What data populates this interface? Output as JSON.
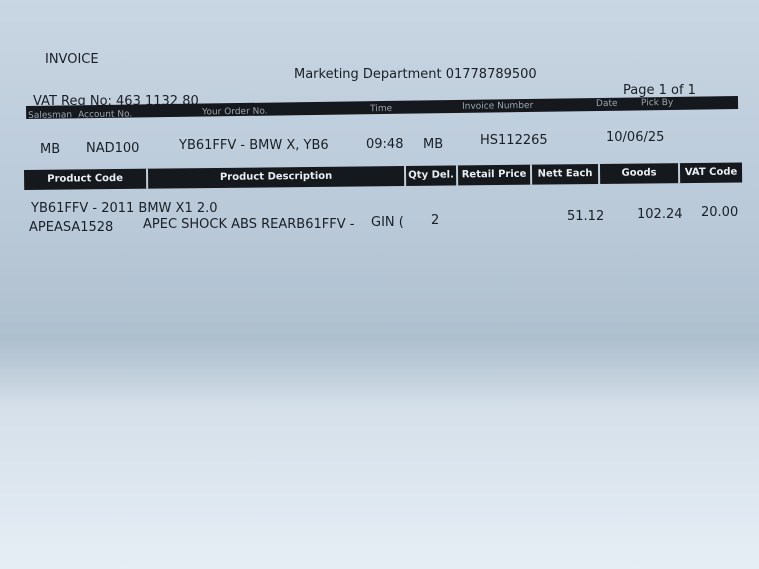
{
  "title": "INVOICE",
  "department": "Marketing Department  01778789500",
  "page": "Page 1 of 1",
  "vat_reg": "VAT Reg No: 463 1132 80",
  "info_headers": [
    "Salesman",
    "Account No.",
    "Your Order No.",
    "Time",
    "Invoice Number",
    "Date",
    "Pick By"
  ],
  "info": {
    "salesman": "MB",
    "account": "NAD100",
    "order": "YB61FFV - BMW X, YB6",
    "time": "09:48",
    "pick_by": "MB",
    "invoice_number": "HS112265",
    "date": "10/06/25"
  },
  "columns": [
    "Product Code",
    "Product Description",
    "Qty Del.",
    "Retail Price",
    "Nett Each",
    "Goods",
    "VAT Code"
  ],
  "vehicle_line": "YB61FFV - 2011 BMW X1 2.0",
  "line": {
    "code": "APEASA1528",
    "description": "APEC SHOCK ABS REARB61FFV -",
    "desc_cont": "GIN (",
    "qty": "2",
    "nett_each": "51.12",
    "goods": "102.24",
    "vat_code": "20.00"
  }
}
